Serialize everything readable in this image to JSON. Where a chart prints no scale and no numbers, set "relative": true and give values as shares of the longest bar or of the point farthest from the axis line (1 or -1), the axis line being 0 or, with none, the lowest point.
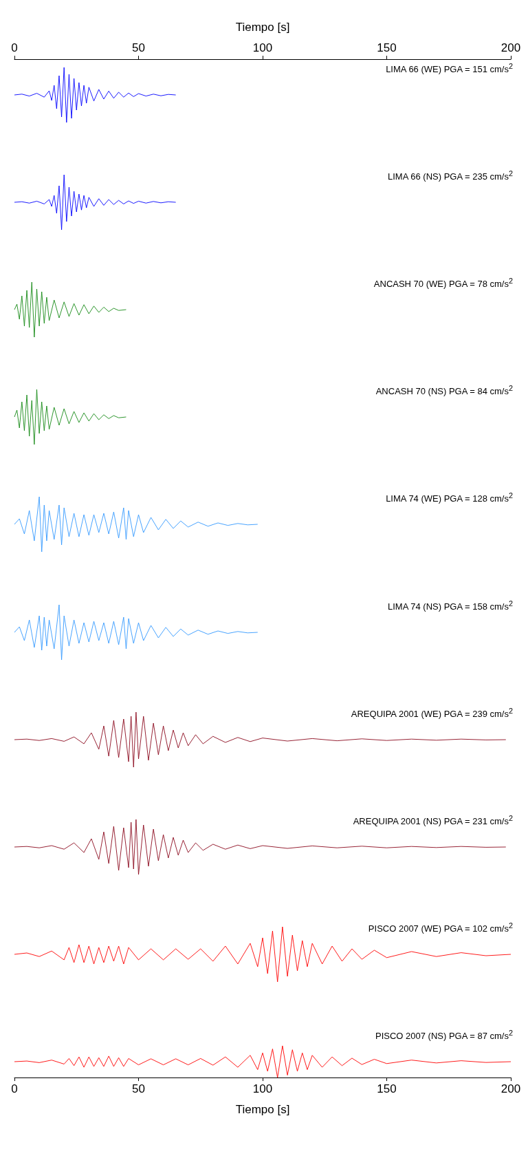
{
  "chart_data": [
    {
      "type": "line",
      "relative": true,
      "xlim": [
        0,
        200
      ],
      "xticks": [
        0,
        50,
        100,
        150,
        200
      ],
      "xlabel": "Tiempo [s]",
      "annotations": [
        "LIMA 66 (WE) PGA = 151 cm/s$^{2}$"
      ],
      "series": [
        {
          "color": "#0000ff",
          "x": [
            0,
            3,
            6,
            9,
            12,
            14,
            15,
            16,
            17,
            18,
            19,
            20,
            21,
            22,
            23,
            24,
            25,
            26,
            27,
            28,
            29,
            30,
            32,
            34,
            36,
            38,
            40,
            42,
            44,
            46,
            48,
            50,
            53,
            56,
            59,
            62,
            65
          ],
          "values": [
            0.5,
            0.515,
            0.48,
            0.53,
            0.46,
            0.575,
            0.4,
            0.675,
            0.25,
            0.85,
            0.1,
            1,
            0,
            0.875,
            0.075,
            0.8,
            0.225,
            0.725,
            0.3,
            0.675,
            0.35,
            0.64,
            0.39,
            0.6,
            0.425,
            0.57,
            0.44,
            0.55,
            0.46,
            0.535,
            0.47,
            0.525,
            0.48,
            0.515,
            0.485,
            0.51,
            0.5
          ]
        }
      ]
    },
    {
      "type": "line",
      "relative": true,
      "xlim": [
        0,
        200
      ],
      "tick_labels": false,
      "annotations": [
        "LIMA 66 (NS) PGA = 235 cm/s$^{2}$"
      ],
      "series": [
        {
          "color": "#0000ff",
          "x": [
            0,
            3,
            6,
            9,
            12,
            14,
            15,
            16,
            17,
            18,
            19,
            20,
            21,
            22,
            23,
            24,
            25,
            26,
            27,
            28,
            29,
            30,
            32,
            34,
            36,
            38,
            40,
            42,
            44,
            46,
            48,
            50,
            53,
            56,
            59,
            62,
            65
          ],
          "values": [
            0.5,
            0.51,
            0.485,
            0.52,
            0.47,
            0.55,
            0.425,
            0.625,
            0.3,
            0.8,
            0,
            1,
            0.15,
            0.775,
            0.25,
            0.7,
            0.325,
            0.65,
            0.36,
            0.625,
            0.4,
            0.59,
            0.425,
            0.565,
            0.445,
            0.55,
            0.46,
            0.535,
            0.47,
            0.525,
            0.48,
            0.52,
            0.485,
            0.515,
            0.49,
            0.51,
            0.5
          ]
        }
      ]
    },
    {
      "type": "line",
      "relative": true,
      "xlim": [
        0,
        200
      ],
      "tick_labels": false,
      "annotations": [
        "ANCASH 70 (WE) PGA = 78 cm/s$^{2}$"
      ],
      "series": [
        {
          "color": "#168a16",
          "x": [
            0,
            1,
            2,
            3,
            4,
            5,
            6,
            7,
            8,
            9,
            10,
            11,
            12,
            13,
            14,
            16,
            18,
            20,
            22,
            24,
            26,
            28,
            30,
            32,
            34,
            36,
            38,
            40,
            42,
            45
          ],
          "values": [
            0.5,
            0.6,
            0.325,
            0.75,
            0.2,
            0.85,
            0.175,
            1,
            0,
            0.875,
            0.2,
            0.825,
            0.25,
            0.725,
            0.3,
            0.675,
            0.35,
            0.64,
            0.375,
            0.61,
            0.4,
            0.59,
            0.425,
            0.565,
            0.45,
            0.545,
            0.465,
            0.525,
            0.485,
            0.5
          ]
        }
      ]
    },
    {
      "type": "line",
      "relative": true,
      "xlim": [
        0,
        200
      ],
      "tick_labels": false,
      "annotations": [
        "ANCASH 70 (NS) PGA = 84 cm/s$^{2}$"
      ],
      "series": [
        {
          "color": "#168a16",
          "x": [
            0,
            1,
            2,
            3,
            4,
            5,
            6,
            7,
            8,
            9,
            10,
            11,
            12,
            13,
            14,
            16,
            18,
            20,
            22,
            24,
            26,
            28,
            30,
            32,
            34,
            36,
            38,
            40,
            42,
            45
          ],
          "values": [
            0.5,
            0.625,
            0.3,
            0.775,
            0.25,
            0.9,
            0.15,
            0.8,
            0,
            1,
            0.2,
            0.775,
            0.25,
            0.7,
            0.275,
            0.675,
            0.35,
            0.65,
            0.375,
            0.6,
            0.4,
            0.575,
            0.425,
            0.56,
            0.45,
            0.54,
            0.47,
            0.525,
            0.485,
            0.5
          ]
        }
      ]
    },
    {
      "type": "line",
      "relative": true,
      "xlim": [
        0,
        200
      ],
      "tick_labels": false,
      "annotations": [
        "LIMA 74 (WE) PGA = 128 cm/s$^{2}$"
      ],
      "series": [
        {
          "color": "#3399ff",
          "x": [
            0,
            2,
            4,
            6,
            8,
            10,
            11,
            12,
            13,
            14,
            16,
            18,
            19,
            20,
            22,
            24,
            26,
            28,
            30,
            32,
            34,
            36,
            38,
            40,
            42,
            44,
            45,
            46,
            48,
            50,
            52,
            55,
            58,
            61,
            64,
            67,
            70,
            74,
            78,
            82,
            86,
            90,
            94,
            98
          ],
          "values": [
            0.5,
            0.6,
            0.325,
            0.75,
            0.2,
            1,
            0,
            0.85,
            0.2,
            0.75,
            0.225,
            0.85,
            0.125,
            0.8,
            0.275,
            0.7,
            0.275,
            0.675,
            0.3,
            0.675,
            0.35,
            0.7,
            0.325,
            0.725,
            0.25,
            0.8,
            0.225,
            0.75,
            0.275,
            0.675,
            0.35,
            0.625,
            0.4,
            0.59,
            0.425,
            0.56,
            0.45,
            0.54,
            0.465,
            0.525,
            0.48,
            0.515,
            0.49,
            0.5
          ]
        }
      ]
    },
    {
      "type": "line",
      "relative": true,
      "xlim": [
        0,
        200
      ],
      "tick_labels": false,
      "annotations": [
        "LIMA 74 (NS) PGA = 158 cm/s$^{2}$"
      ],
      "series": [
        {
          "color": "#3399ff",
          "x": [
            0,
            2,
            4,
            6,
            8,
            10,
            11,
            12,
            13,
            14,
            16,
            18,
            19,
            20,
            22,
            24,
            26,
            28,
            30,
            32,
            34,
            36,
            38,
            40,
            42,
            44,
            45,
            46,
            48,
            50,
            52,
            55,
            58,
            61,
            64,
            67,
            70,
            74,
            78,
            82,
            86,
            90,
            94,
            98
          ],
          "values": [
            0.5,
            0.6,
            0.35,
            0.725,
            0.225,
            0.8,
            0.175,
            0.775,
            0.25,
            0.725,
            0.2,
            1,
            0,
            0.8,
            0.25,
            0.725,
            0.3,
            0.675,
            0.325,
            0.7,
            0.35,
            0.675,
            0.3,
            0.7,
            0.275,
            0.775,
            0.2,
            0.75,
            0.3,
            0.675,
            0.35,
            0.625,
            0.4,
            0.59,
            0.425,
            0.56,
            0.45,
            0.54,
            0.465,
            0.525,
            0.48,
            0.515,
            0.49,
            0.5
          ]
        }
      ]
    },
    {
      "type": "line",
      "relative": true,
      "xlim": [
        0,
        200
      ],
      "tick_labels": false,
      "annotations": [
        "AREQUIPA 2001 (WE) PGA = 239 cm/s$^{2}$"
      ],
      "series": [
        {
          "color": "#8b0a1e",
          "x": [
            0,
            5,
            10,
            15,
            20,
            24,
            28,
            31,
            34,
            36,
            38,
            40,
            42,
            44,
            46,
            47,
            48,
            49,
            50,
            52,
            54,
            56,
            58,
            60,
            62,
            64,
            66,
            68,
            70,
            73,
            76,
            80,
            85,
            90,
            95,
            100,
            110,
            120,
            130,
            140,
            150,
            160,
            170,
            180,
            190,
            198
          ],
          "values": [
            0.5,
            0.51,
            0.485,
            0.52,
            0.47,
            0.55,
            0.425,
            0.625,
            0.325,
            0.75,
            0.2,
            0.85,
            0.175,
            0.875,
            0.1,
            0.925,
            0,
            1,
            0.15,
            0.925,
            0.125,
            0.8,
            0.225,
            0.75,
            0.3,
            0.675,
            0.35,
            0.625,
            0.39,
            0.59,
            0.425,
            0.56,
            0.45,
            0.54,
            0.465,
            0.53,
            0.475,
            0.52,
            0.48,
            0.515,
            0.485,
            0.51,
            0.49,
            0.51,
            0.495,
            0.5
          ]
        }
      ]
    },
    {
      "type": "line",
      "relative": true,
      "xlim": [
        0,
        200
      ],
      "tick_labels": false,
      "annotations": [
        "AREQUIPA 2001 (NS) PGA = 231 cm/s$^{2}$"
      ],
      "series": [
        {
          "color": "#8b0a1e",
          "x": [
            0,
            5,
            10,
            15,
            20,
            24,
            28,
            31,
            34,
            36,
            38,
            40,
            42,
            44,
            46,
            47,
            48,
            49,
            50,
            52,
            54,
            56,
            58,
            60,
            62,
            64,
            66,
            68,
            70,
            73,
            76,
            80,
            85,
            90,
            95,
            100,
            110,
            120,
            130,
            140,
            150,
            160,
            170,
            180,
            190,
            198
          ],
          "values": [
            0.5,
            0.51,
            0.485,
            0.525,
            0.46,
            0.575,
            0.4,
            0.65,
            0.275,
            0.775,
            0.2,
            0.875,
            0.075,
            0.85,
            0.125,
            0.95,
            0.1,
            1,
            0,
            0.9,
            0.15,
            0.825,
            0.25,
            0.725,
            0.3,
            0.675,
            0.35,
            0.625,
            0.4,
            0.575,
            0.44,
            0.55,
            0.46,
            0.535,
            0.47,
            0.525,
            0.475,
            0.52,
            0.485,
            0.515,
            0.485,
            0.51,
            0.49,
            0.51,
            0.495,
            0.5
          ]
        }
      ]
    },
    {
      "type": "line",
      "relative": true,
      "xlim": [
        0,
        200
      ],
      "tick_labels": false,
      "annotations": [
        "PISCO 2007 (WE) PGA = 102 cm/s$^{2}$"
      ],
      "series": [
        {
          "color": "#ff0000",
          "x": [
            0,
            5,
            10,
            15,
            20,
            22,
            24,
            26,
            28,
            30,
            32,
            34,
            36,
            38,
            40,
            42,
            44,
            46,
            50,
            55,
            60,
            65,
            70,
            75,
            80,
            85,
            90,
            95,
            98,
            100,
            102,
            104,
            106,
            108,
            110,
            112,
            114,
            116,
            118,
            120,
            124,
            128,
            132,
            136,
            140,
            145,
            150,
            160,
            170,
            180,
            190,
            200
          ],
          "values": [
            0.5,
            0.525,
            0.46,
            0.56,
            0.4,
            0.625,
            0.35,
            0.675,
            0.35,
            0.65,
            0.325,
            0.625,
            0.35,
            0.65,
            0.375,
            0.65,
            0.325,
            0.625,
            0.4,
            0.6,
            0.4,
            0.6,
            0.41,
            0.6,
            0.375,
            0.65,
            0.325,
            0.7,
            0.275,
            0.8,
            0.15,
            0.925,
            0,
            1,
            0.1,
            0.85,
            0.2,
            0.75,
            0.275,
            0.7,
            0.325,
            0.65,
            0.375,
            0.6,
            0.41,
            0.575,
            0.44,
            0.55,
            0.46,
            0.53,
            0.475,
            0.5
          ]
        }
      ]
    },
    {
      "type": "line",
      "relative": true,
      "xlim": [
        0,
        200
      ],
      "xticks": [
        0,
        50,
        100,
        150,
        200
      ],
      "xlabel": "Tiempo [s]",
      "annotations": [
        "PISCO 2007 (NS) PGA = 87 cm/s$^{2}$"
      ],
      "series": [
        {
          "color": "#ff0000",
          "x": [
            0,
            5,
            10,
            15,
            20,
            22,
            24,
            26,
            28,
            30,
            32,
            34,
            36,
            38,
            40,
            42,
            44,
            46,
            50,
            55,
            60,
            65,
            70,
            75,
            80,
            85,
            90,
            95,
            98,
            100,
            102,
            104,
            106,
            108,
            110,
            112,
            114,
            116,
            118,
            120,
            124,
            128,
            132,
            136,
            140,
            145,
            150,
            160,
            170,
            180,
            190,
            200
          ],
          "values": [
            0.5,
            0.52,
            0.47,
            0.55,
            0.425,
            0.6,
            0.375,
            0.65,
            0.325,
            0.65,
            0.35,
            0.625,
            0.35,
            0.675,
            0.35,
            0.625,
            0.35,
            0.6,
            0.4,
            0.59,
            0.4,
            0.59,
            0.4,
            0.6,
            0.39,
            0.65,
            0.325,
            0.7,
            0.25,
            0.775,
            0.2,
            0.9,
            0,
            1,
            0.075,
            0.875,
            0.2,
            0.775,
            0.25,
            0.7,
            0.325,
            0.65,
            0.375,
            0.61,
            0.41,
            0.575,
            0.44,
            0.55,
            0.46,
            0.53,
            0.475,
            0.5
          ]
        }
      ]
    }
  ]
}
